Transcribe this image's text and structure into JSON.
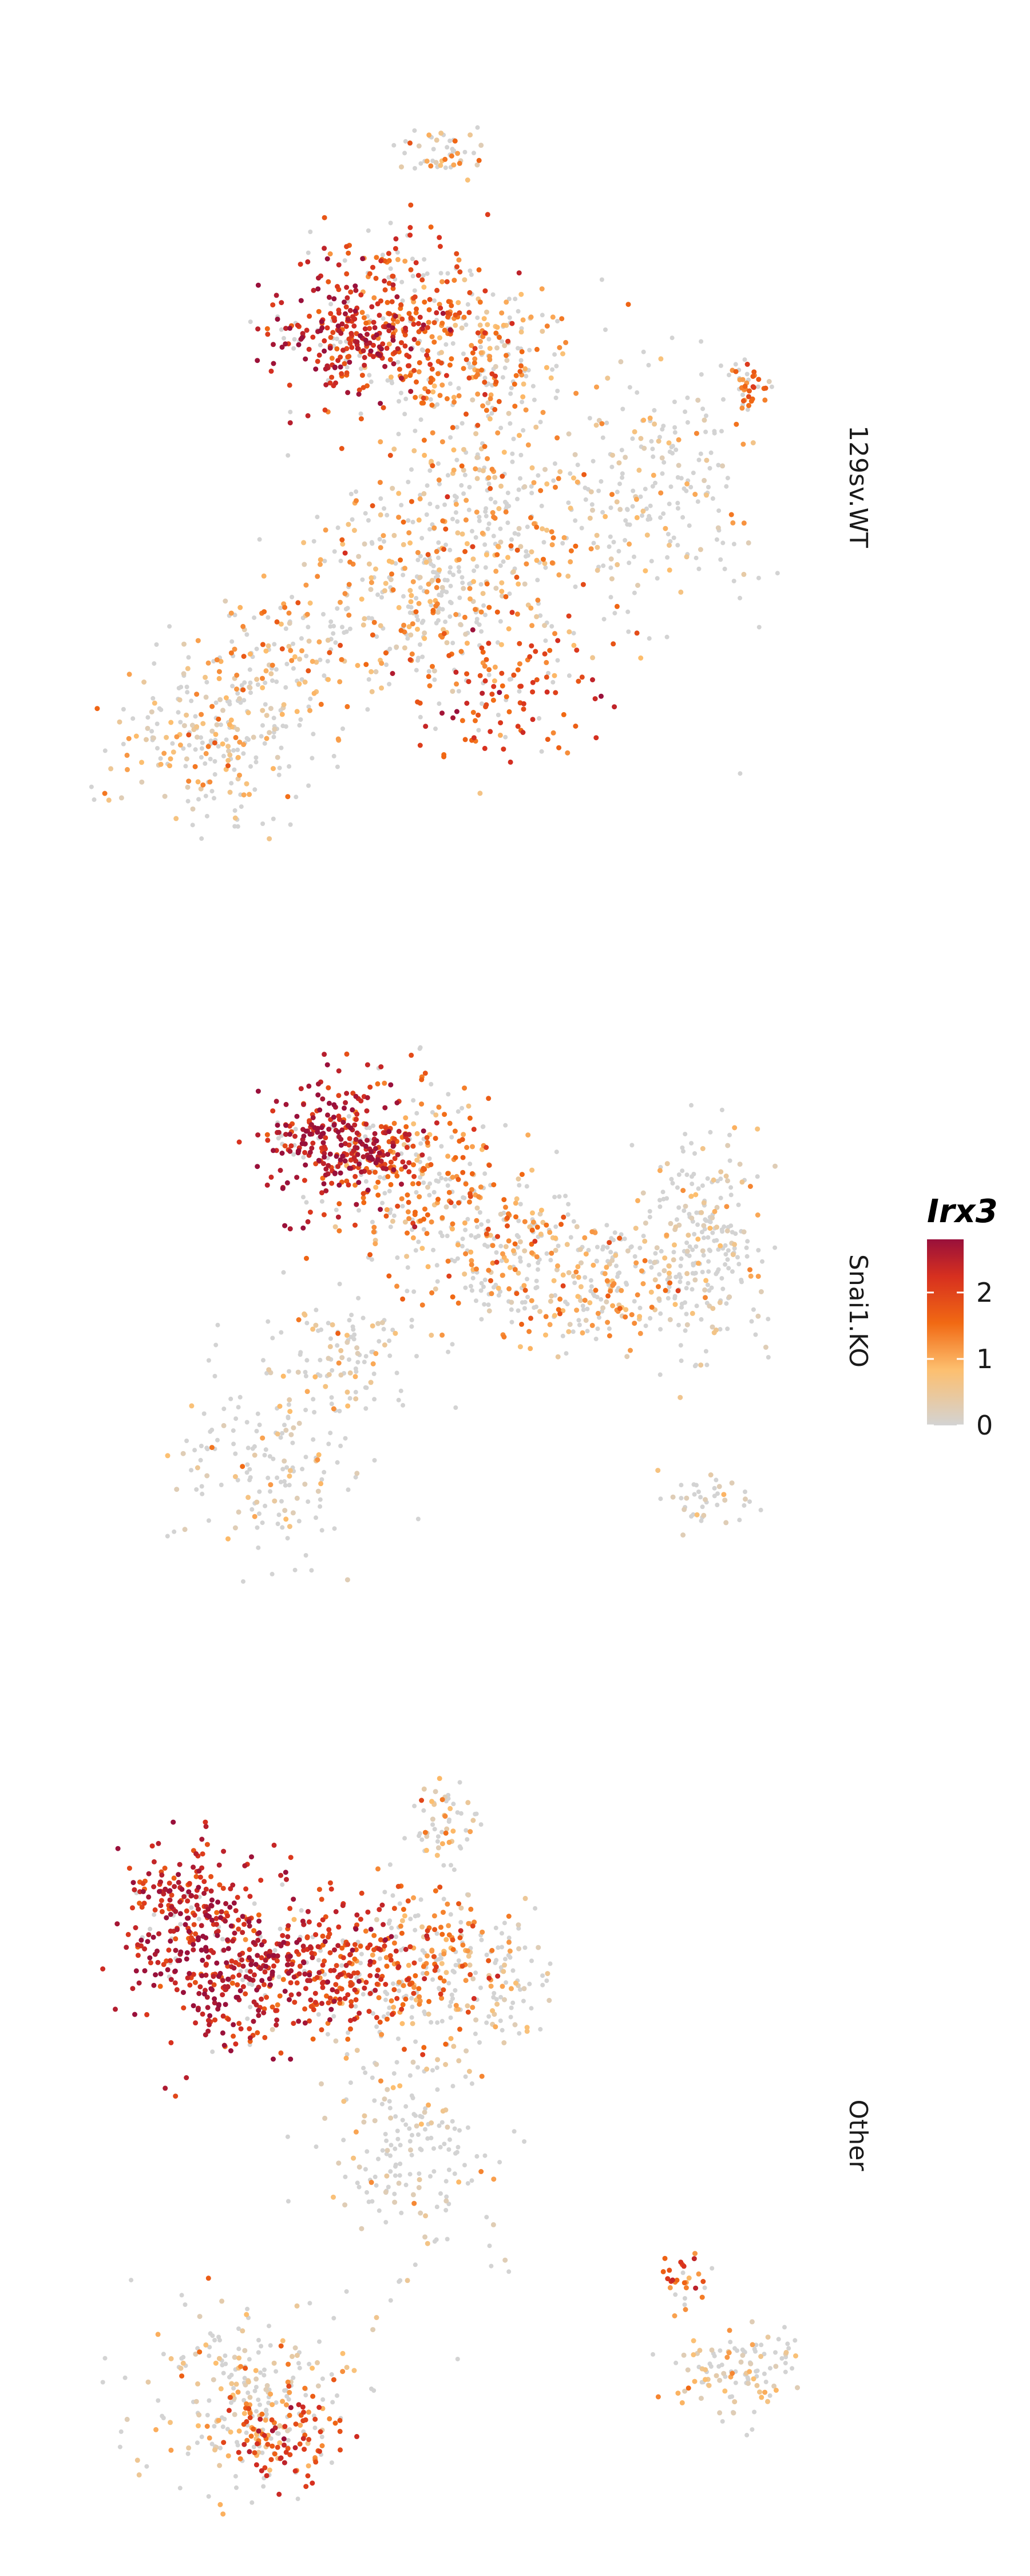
{
  "chart_data": {
    "type": "scatter",
    "title": "",
    "xlabel": "",
    "ylabel": "",
    "grid": false,
    "axes_visible": false,
    "legend": {
      "title": "Irx3",
      "placement": "right",
      "type": "colorbar",
      "ticks": [
        0,
        1,
        2
      ],
      "range": [
        0,
        2.8
      ],
      "colors": [
        "#d3d3d3",
        "#fdbf6f",
        "#f16913",
        "#d7301f",
        "#99103b"
      ]
    },
    "panels": [
      {
        "label": "129sv.WT",
        "clusters": [
          {
            "cx": 0.45,
            "cy": 0.28,
            "sx": 0.06,
            "sy": 0.06,
            "n": 300,
            "expr": 1.6
          },
          {
            "cx": 0.36,
            "cy": 0.3,
            "sx": 0.05,
            "sy": 0.04,
            "n": 200,
            "expr": 2.3
          },
          {
            "cx": 0.58,
            "cy": 0.33,
            "sx": 0.05,
            "sy": 0.05,
            "n": 150,
            "expr": 0.9
          },
          {
            "cx": 0.55,
            "cy": 0.55,
            "sx": 0.1,
            "sy": 0.08,
            "n": 400,
            "expr": 0.8
          },
          {
            "cx": 0.47,
            "cy": 0.66,
            "sx": 0.07,
            "sy": 0.06,
            "n": 200,
            "expr": 0.9
          },
          {
            "cx": 0.58,
            "cy": 0.78,
            "sx": 0.07,
            "sy": 0.04,
            "n": 120,
            "expr": 1.8
          },
          {
            "cx": 0.8,
            "cy": 0.5,
            "sx": 0.06,
            "sy": 0.09,
            "n": 200,
            "expr": 0.4
          },
          {
            "cx": 0.92,
            "cy": 0.37,
            "sx": 0.015,
            "sy": 0.02,
            "n": 40,
            "expr": 1.4
          },
          {
            "cx": 0.18,
            "cy": 0.84,
            "sx": 0.07,
            "sy": 0.06,
            "n": 250,
            "expr": 0.6
          },
          {
            "cx": 0.27,
            "cy": 0.73,
            "sx": 0.05,
            "sy": 0.05,
            "n": 100,
            "expr": 0.8
          },
          {
            "cx": 0.5,
            "cy": 0.05,
            "sx": 0.03,
            "sy": 0.015,
            "n": 50,
            "expr": 0.6
          }
        ]
      },
      {
        "label": "Snai1.KO",
        "clusters": [
          {
            "cx": 0.36,
            "cy": 0.26,
            "sx": 0.05,
            "sy": 0.04,
            "n": 300,
            "expr": 2.4
          },
          {
            "cx": 0.46,
            "cy": 0.3,
            "sx": 0.06,
            "sy": 0.06,
            "n": 250,
            "expr": 1.2
          },
          {
            "cx": 0.58,
            "cy": 0.4,
            "sx": 0.06,
            "sy": 0.05,
            "n": 200,
            "expr": 0.9
          },
          {
            "cx": 0.72,
            "cy": 0.45,
            "sx": 0.06,
            "sy": 0.05,
            "n": 200,
            "expr": 0.8
          },
          {
            "cx": 0.86,
            "cy": 0.4,
            "sx": 0.04,
            "sy": 0.07,
            "n": 250,
            "expr": 0.3
          },
          {
            "cx": 0.35,
            "cy": 0.55,
            "sx": 0.06,
            "sy": 0.05,
            "n": 120,
            "expr": 0.4
          },
          {
            "cx": 0.25,
            "cy": 0.7,
            "sx": 0.06,
            "sy": 0.06,
            "n": 150,
            "expr": 0.3
          },
          {
            "cx": 0.87,
            "cy": 0.74,
            "sx": 0.03,
            "sy": 0.02,
            "n": 40,
            "expr": 0.1
          }
        ]
      },
      {
        "label": "Other",
        "clusters": [
          {
            "cx": 0.2,
            "cy": 0.25,
            "sx": 0.06,
            "sy": 0.06,
            "n": 350,
            "expr": 2.4
          },
          {
            "cx": 0.14,
            "cy": 0.17,
            "sx": 0.04,
            "sy": 0.04,
            "n": 120,
            "expr": 2.2
          },
          {
            "cx": 0.35,
            "cy": 0.26,
            "sx": 0.06,
            "sy": 0.04,
            "n": 250,
            "expr": 2.0
          },
          {
            "cx": 0.47,
            "cy": 0.25,
            "sx": 0.05,
            "sy": 0.05,
            "n": 200,
            "expr": 1.2
          },
          {
            "cx": 0.58,
            "cy": 0.28,
            "sx": 0.04,
            "sy": 0.05,
            "n": 100,
            "expr": 0.4
          },
          {
            "cx": 0.5,
            "cy": 0.07,
            "sx": 0.02,
            "sy": 0.03,
            "n": 60,
            "expr": 0.6
          },
          {
            "cx": 0.45,
            "cy": 0.5,
            "sx": 0.06,
            "sy": 0.08,
            "n": 200,
            "expr": 0.3
          },
          {
            "cx": 0.22,
            "cy": 0.84,
            "sx": 0.07,
            "sy": 0.06,
            "n": 250,
            "expr": 0.5
          },
          {
            "cx": 0.28,
            "cy": 0.89,
            "sx": 0.04,
            "sy": 0.03,
            "n": 100,
            "expr": 1.8
          },
          {
            "cx": 0.91,
            "cy": 0.8,
            "sx": 0.05,
            "sy": 0.03,
            "n": 120,
            "expr": 0.5
          },
          {
            "cx": 0.84,
            "cy": 0.68,
            "sx": 0.02,
            "sy": 0.02,
            "n": 30,
            "expr": 1.5
          }
        ]
      }
    ]
  }
}
